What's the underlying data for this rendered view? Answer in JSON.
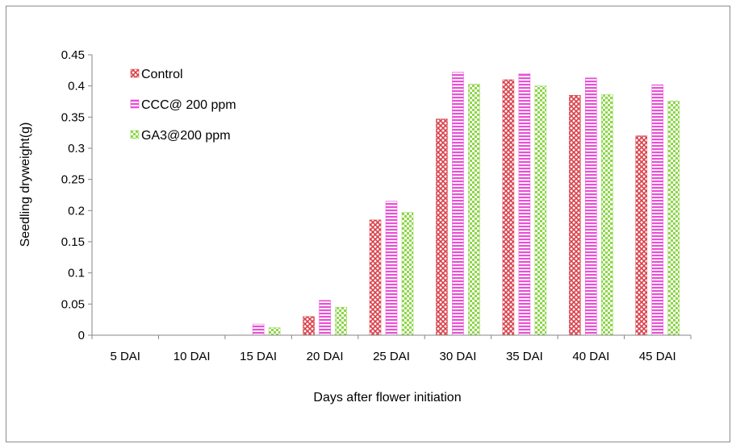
{
  "chart_data": {
    "type": "bar",
    "title": "",
    "xlabel": "Days after flower initiation",
    "ylabel": "Seedling dryweight(g)",
    "ylim": [
      0,
      0.45
    ],
    "yticks": [
      "0",
      "0.05",
      "0.1",
      "0.15",
      "0.2",
      "0.25",
      "0.3",
      "0.35",
      "0.4",
      "0.45"
    ],
    "ytick_values": [
      0,
      0.05,
      0.1,
      0.15,
      0.2,
      0.25,
      0.3,
      0.35,
      0.4,
      0.45
    ],
    "categories": [
      "5 DAI",
      "10 DAI",
      "15 DAI",
      "20 DAI",
      "25 DAI",
      "30 DAI",
      "35 DAI",
      "40 DAI",
      "45 DAI"
    ],
    "grid": false,
    "legend": "top-left",
    "series": [
      {
        "name": "Control",
        "color": "#d9404a",
        "pattern": "diamond-check",
        "values": [
          0,
          0,
          0,
          0.03,
          0.185,
          0.347,
          0.41,
          0.385,
          0.32
        ]
      },
      {
        "name": "CCC@ 200 ppm",
        "color": "#e84fd6",
        "pattern": "horizontal-stripes",
        "values": [
          0,
          0,
          0.018,
          0.056,
          0.215,
          0.422,
          0.42,
          0.413,
          0.402
        ]
      },
      {
        "name": "GA3@200 ppm",
        "color": "#8ed64a",
        "pattern": "checkerboard",
        "values": [
          0,
          0,
          0.012,
          0.045,
          0.197,
          0.403,
          0.4,
          0.386,
          0.376
        ]
      }
    ]
  }
}
